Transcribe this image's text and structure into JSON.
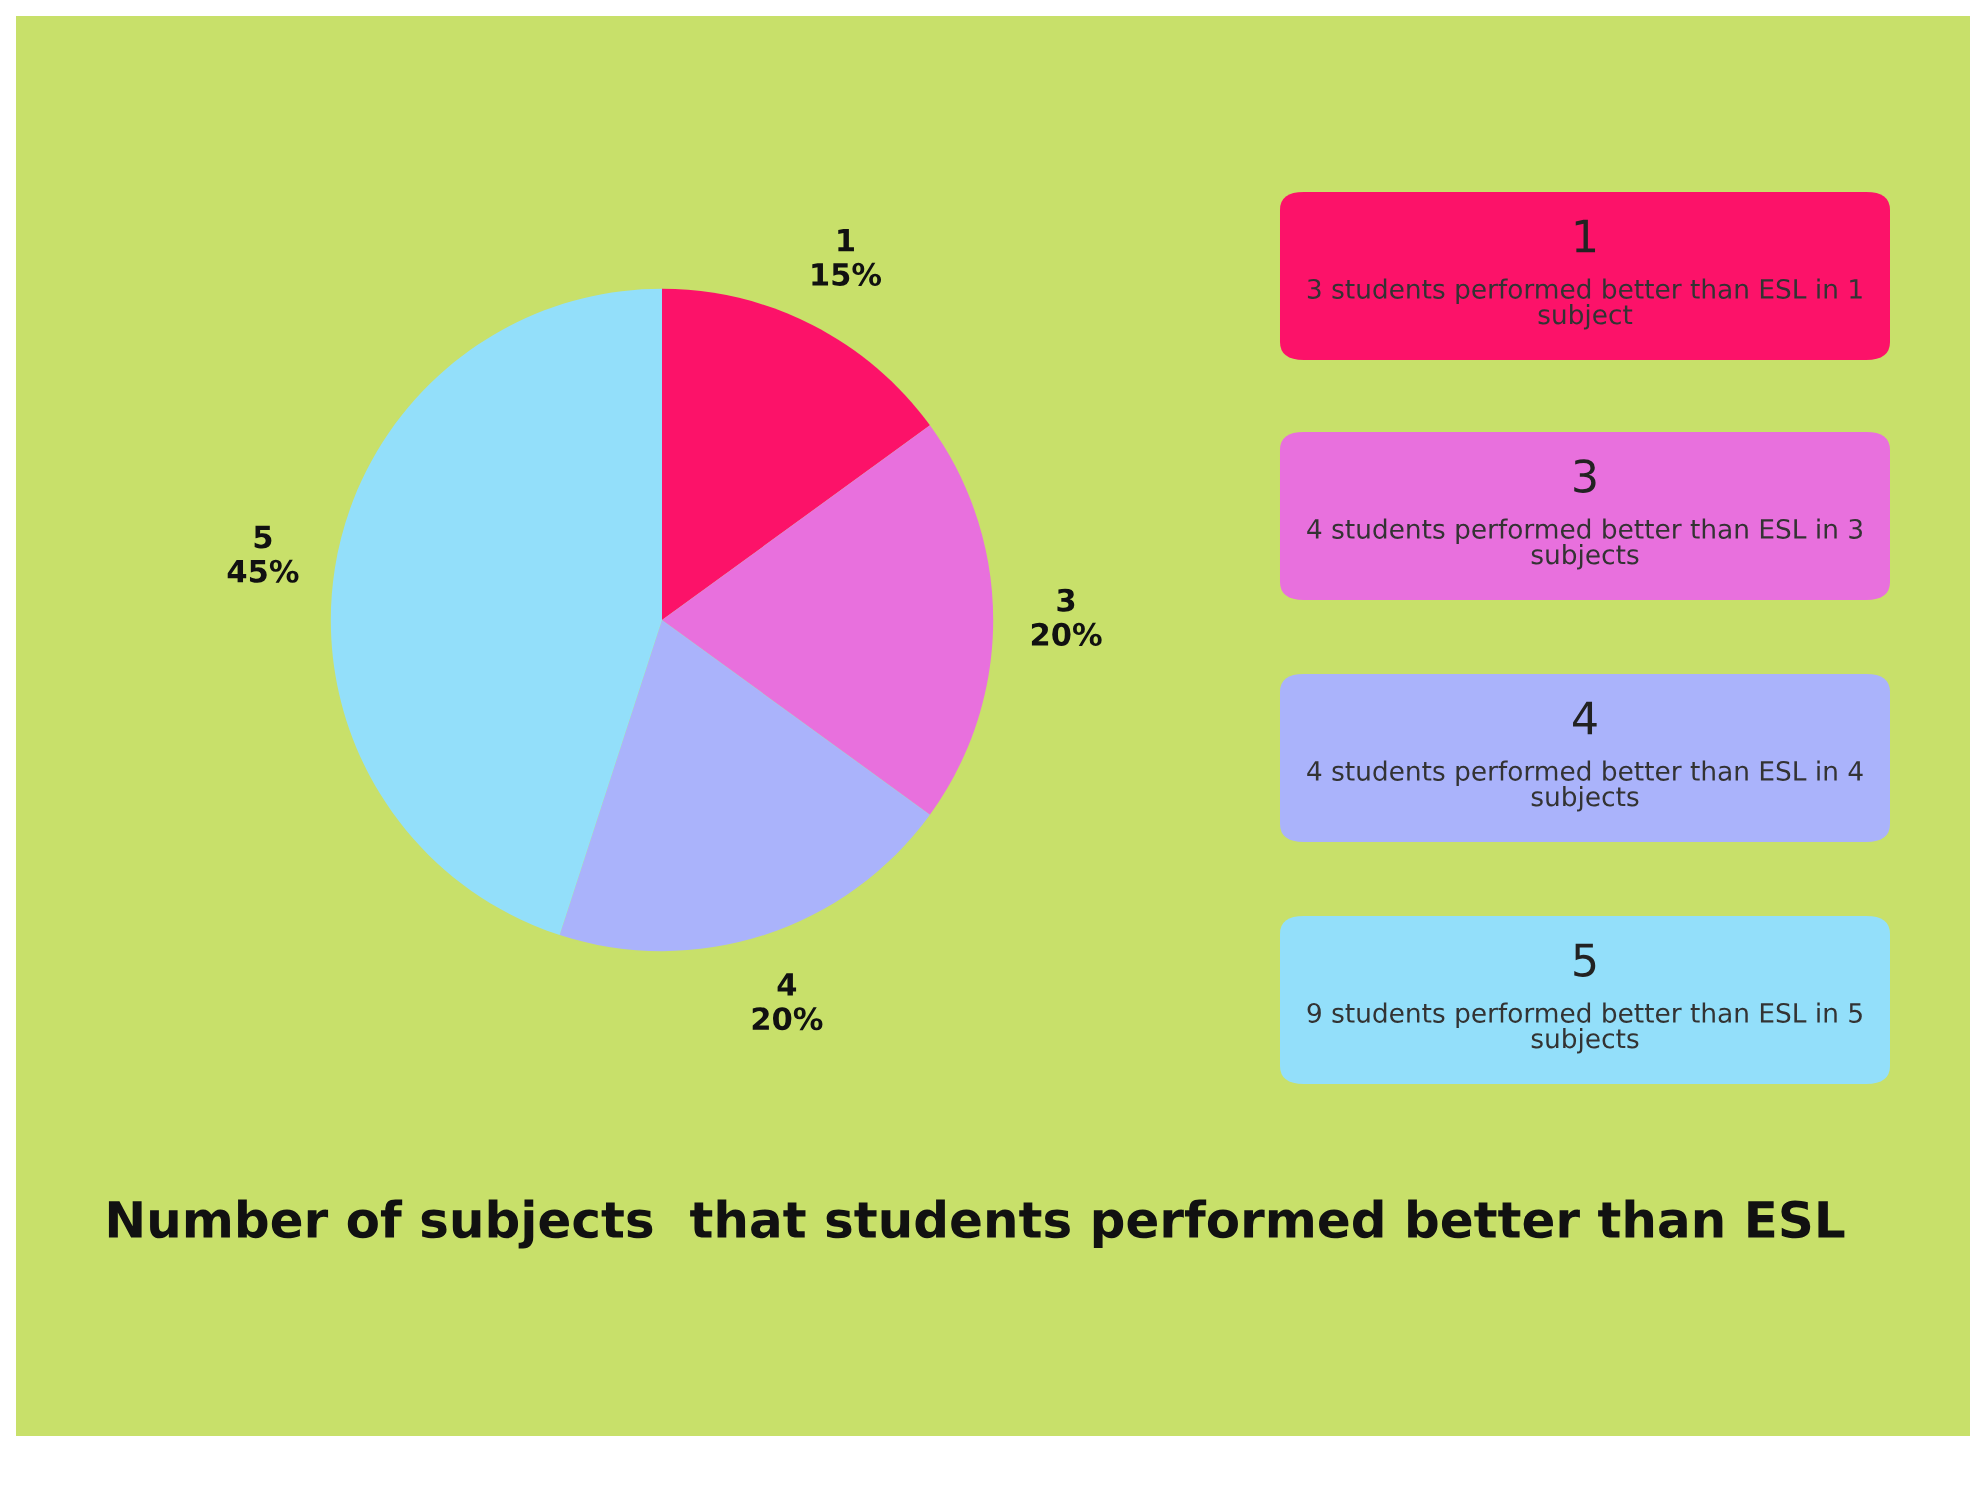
{
  "chart_data": {
    "type": "pie",
    "title": "Number of subjects  that students performed better than ESL",
    "categories": [
      "1",
      "3",
      "4",
      "5"
    ],
    "values": [
      15,
      20,
      20,
      45
    ],
    "value_labels": [
      "15%",
      "20%",
      "20%",
      "45%"
    ],
    "colors": [
      "#fc1269",
      "#e870dd",
      "#aab3fb",
      "#93dffa"
    ],
    "annotations": [
      "3 students performed better than ESL in 1 subject",
      "4 students performed better than ESL in 3 subjects",
      "4 students performed better than ESL in 4 subjects",
      "9 students performed better than ESL in 5 subjects"
    ]
  }
}
